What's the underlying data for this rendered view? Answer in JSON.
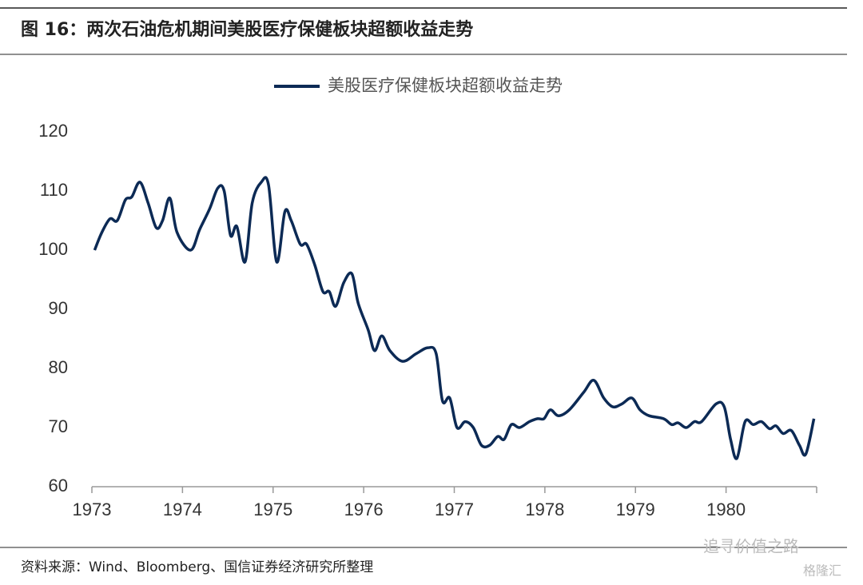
{
  "chart_data": {
    "type": "line",
    "title": "图 16：两次石油危机期间美股医疗保健板块超额收益走势",
    "source": "资料来源：Wind、Bloomberg、国信证券经济研究所整理",
    "watermark": [
      "追寻价值之路",
      "格隆汇"
    ],
    "x": [
      1973.03,
      1973.11,
      1973.2,
      1973.28,
      1973.37,
      1973.44,
      1973.53,
      1973.62,
      1973.71,
      1973.78,
      1973.86,
      1973.94,
      1974.09,
      1974.19,
      1974.3,
      1974.39,
      1974.46,
      1974.53,
      1974.6,
      1974.69,
      1974.77,
      1974.87,
      1974.95,
      1975.04,
      1975.13,
      1975.2,
      1975.3,
      1975.37,
      1975.46,
      1975.55,
      1975.62,
      1975.69,
      1975.78,
      1975.87,
      1975.94,
      1976.05,
      1976.12,
      1976.2,
      1976.29,
      1976.43,
      1976.58,
      1976.71,
      1976.8,
      1976.87,
      1976.95,
      1977.03,
      1977.12,
      1977.21,
      1977.3,
      1977.39,
      1977.48,
      1977.55,
      1977.63,
      1977.72,
      1977.83,
      1977.92,
      1977.99,
      1978.06,
      1978.15,
      1978.27,
      1978.43,
      1978.54,
      1978.65,
      1978.75,
      1978.85,
      1978.96,
      1979.05,
      1979.15,
      1979.31,
      1979.4,
      1979.47,
      1979.56,
      1979.65,
      1979.73,
      1979.89,
      1979.98,
      1980.05,
      1980.12,
      1980.21,
      1980.3,
      1980.39,
      1980.48,
      1980.55,
      1980.63,
      1980.72,
      1980.81,
      1980.88,
      1980.97
    ],
    "series": [
      {
        "name": "美股医疗保健板块超额收益走势",
        "color": "#0c2a55",
        "values": [
          100,
          103,
          105.3,
          105,
          108.5,
          109,
          111.5,
          108,
          103.8,
          105,
          108.8,
          103,
          100,
          103.5,
          107,
          110.5,
          110,
          102.5,
          104,
          98,
          108,
          111.5,
          111,
          98,
          106.5,
          105,
          101,
          101,
          97.5,
          93,
          93,
          90.5,
          94.5,
          96,
          91,
          86.5,
          83,
          85.5,
          83,
          81.2,
          82.5,
          83.5,
          82.5,
          74.5,
          75,
          70,
          71,
          70,
          67,
          67,
          68.5,
          68,
          70.5,
          70,
          71,
          71.5,
          71.5,
          73,
          72,
          73,
          76,
          78,
          75,
          73.5,
          74,
          75,
          73,
          72,
          71.5,
          70.5,
          70.8,
          70,
          71,
          71,
          74,
          73.5,
          68,
          64.8,
          71,
          70.5,
          71,
          69.8,
          70.3,
          69,
          69.5,
          67,
          65.5,
          71.5
        ]
      }
    ],
    "xlim": [
      1973,
      1981
    ],
    "xticks": [
      1973,
      1974,
      1975,
      1976,
      1977,
      1978,
      1979,
      1980
    ],
    "ylim": [
      60,
      120
    ],
    "yticks": [
      60,
      70,
      80,
      90,
      100,
      110,
      120
    ]
  }
}
